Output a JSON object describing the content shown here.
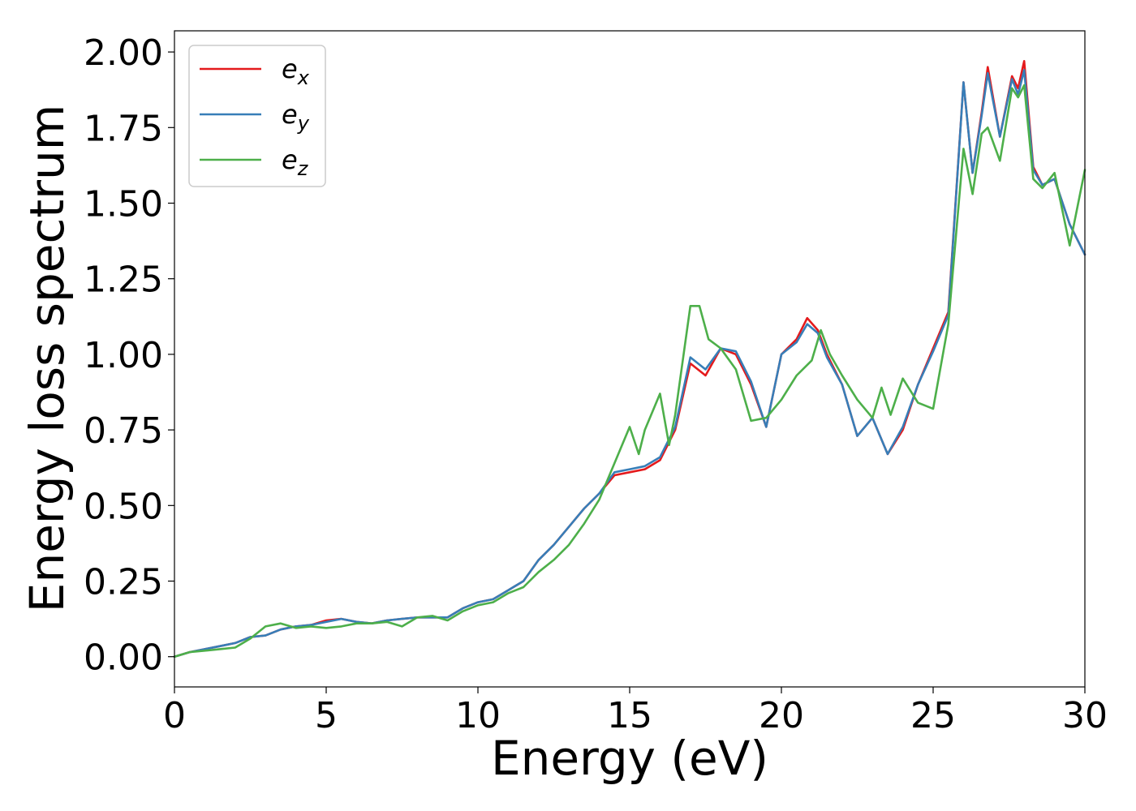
{
  "chart_data": {
    "type": "line",
    "xlabel": "Energy (eV)",
    "ylabel": "Energy loss spectrum",
    "xlim": [
      0,
      30
    ],
    "ylim": [
      -0.1,
      2.07
    ],
    "xticks": [
      0,
      5,
      10,
      15,
      20,
      25,
      30
    ],
    "yticks": [
      0.0,
      0.25,
      0.5,
      0.75,
      1.0,
      1.25,
      1.5,
      1.75,
      2.0
    ],
    "xtick_labels": [
      "0",
      "5",
      "10",
      "15",
      "20",
      "25",
      "30"
    ],
    "ytick_labels": [
      "0.00",
      "0.25",
      "0.50",
      "0.75",
      "1.00",
      "1.25",
      "1.50",
      "1.75",
      "2.00"
    ],
    "grid": false,
    "legend_position": "top-left",
    "series": [
      {
        "name": "e",
        "subscript": "x",
        "color": "#e41a1c",
        "x": [
          0,
          0.5,
          1,
          1.5,
          2,
          2.5,
          3,
          3.5,
          4,
          4.5,
          5,
          5.5,
          6,
          6.5,
          7,
          7.5,
          8,
          8.5,
          9,
          9.5,
          10,
          10.5,
          11,
          11.5,
          12,
          12.5,
          13,
          13.5,
          14,
          14.5,
          15,
          15.5,
          16,
          16.5,
          17,
          17.5,
          18,
          18.5,
          19,
          19.5,
          20,
          20.5,
          20.85,
          21.2,
          21.5,
          22,
          22.5,
          23,
          23.5,
          24,
          24.5,
          25,
          25.5,
          26,
          26.3,
          26.6,
          26.8,
          27.2,
          27.6,
          27.8,
          28,
          28.3,
          28.6,
          29,
          29.5,
          30
        ],
        "y": [
          0.0,
          0.015,
          0.025,
          0.035,
          0.045,
          0.065,
          0.07,
          0.09,
          0.1,
          0.105,
          0.12,
          0.125,
          0.115,
          0.11,
          0.12,
          0.125,
          0.13,
          0.13,
          0.13,
          0.16,
          0.18,
          0.19,
          0.22,
          0.25,
          0.32,
          0.37,
          0.43,
          0.49,
          0.54,
          0.6,
          0.61,
          0.62,
          0.65,
          0.75,
          0.97,
          0.93,
          1.02,
          1.0,
          0.9,
          0.76,
          1.0,
          1.05,
          1.12,
          1.08,
          1.0,
          0.9,
          0.73,
          0.79,
          0.67,
          0.75,
          0.9,
          1.02,
          1.14,
          1.9,
          1.6,
          1.8,
          1.95,
          1.72,
          1.92,
          1.88,
          1.97,
          1.62,
          1.56,
          1.58,
          1.43,
          1.33
        ]
      },
      {
        "name": "e",
        "subscript": "y",
        "color": "#377eb8",
        "x": [
          0,
          0.5,
          1,
          1.5,
          2,
          2.5,
          3,
          3.5,
          4,
          4.5,
          5,
          5.5,
          6,
          6.5,
          7,
          7.5,
          8,
          8.5,
          9,
          9.5,
          10,
          10.5,
          11,
          11.5,
          12,
          12.5,
          13,
          13.5,
          14,
          14.5,
          15,
          15.5,
          16,
          16.5,
          17,
          17.5,
          18,
          18.5,
          19,
          19.5,
          20,
          20.5,
          20.85,
          21.2,
          21.5,
          22,
          22.5,
          23,
          23.5,
          24,
          24.5,
          25,
          25.5,
          26,
          26.3,
          26.6,
          26.8,
          27.2,
          27.6,
          27.8,
          28,
          28.3,
          28.6,
          29,
          29.5,
          30
        ],
        "y": [
          0.0,
          0.015,
          0.025,
          0.035,
          0.045,
          0.065,
          0.07,
          0.09,
          0.1,
          0.105,
          0.115,
          0.125,
          0.115,
          0.11,
          0.12,
          0.125,
          0.13,
          0.13,
          0.13,
          0.16,
          0.18,
          0.19,
          0.22,
          0.25,
          0.32,
          0.37,
          0.43,
          0.49,
          0.54,
          0.61,
          0.62,
          0.63,
          0.66,
          0.76,
          0.99,
          0.95,
          1.02,
          1.01,
          0.91,
          0.76,
          1.0,
          1.04,
          1.1,
          1.07,
          0.99,
          0.9,
          0.73,
          0.79,
          0.67,
          0.76,
          0.9,
          1.01,
          1.13,
          1.9,
          1.6,
          1.79,
          1.93,
          1.72,
          1.91,
          1.86,
          1.94,
          1.61,
          1.56,
          1.58,
          1.43,
          1.33
        ]
      },
      {
        "name": "e",
        "subscript": "z",
        "color": "#4daf4a",
        "x": [
          0,
          0.5,
          1,
          1.5,
          2,
          2.5,
          3,
          3.5,
          4,
          4.5,
          5,
          5.5,
          6,
          6.5,
          7,
          7.5,
          8,
          8.5,
          9,
          9.5,
          10,
          10.5,
          11,
          11.5,
          12,
          12.5,
          13,
          13.5,
          14,
          14.5,
          15,
          15.3,
          15.5,
          16,
          16.3,
          16.5,
          17,
          17.3,
          17.6,
          18,
          18.5,
          19,
          19.5,
          20,
          20.5,
          21,
          21.3,
          21.6,
          22,
          22.5,
          23,
          23.3,
          23.6,
          24,
          24.5,
          25,
          25.5,
          26,
          26.3,
          26.6,
          26.8,
          27.2,
          27.6,
          27.8,
          28,
          28.3,
          28.6,
          29,
          29.5,
          30
        ],
        "y": [
          0.0,
          0.015,
          0.02,
          0.025,
          0.03,
          0.06,
          0.1,
          0.11,
          0.095,
          0.1,
          0.095,
          0.1,
          0.11,
          0.11,
          0.115,
          0.1,
          0.13,
          0.135,
          0.12,
          0.15,
          0.17,
          0.18,
          0.21,
          0.23,
          0.28,
          0.32,
          0.37,
          0.44,
          0.52,
          0.64,
          0.76,
          0.67,
          0.75,
          0.87,
          0.7,
          0.8,
          1.16,
          1.16,
          1.05,
          1.02,
          0.95,
          0.78,
          0.79,
          0.85,
          0.93,
          0.98,
          1.08,
          1.0,
          0.93,
          0.85,
          0.79,
          0.89,
          0.8,
          0.92,
          0.84,
          0.82,
          1.1,
          1.68,
          1.53,
          1.73,
          1.75,
          1.64,
          1.88,
          1.85,
          1.89,
          1.58,
          1.55,
          1.6,
          1.36,
          1.61
        ]
      }
    ]
  }
}
